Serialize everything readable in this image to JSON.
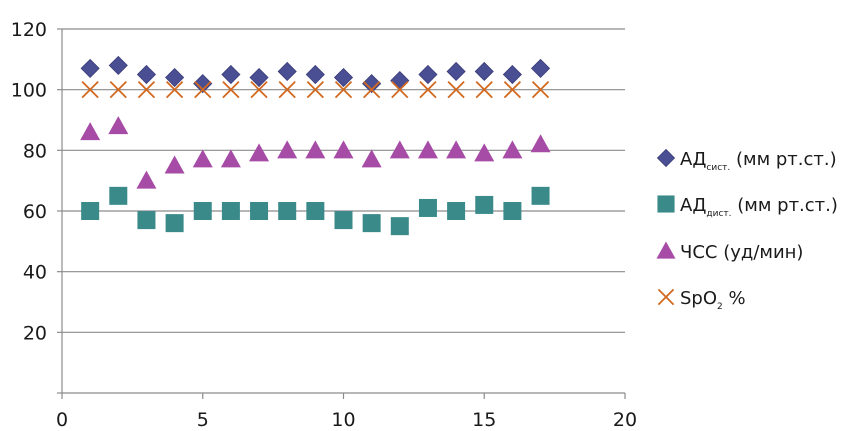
{
  "chart_data": {
    "type": "scatter",
    "title": "",
    "xlabel": "",
    "ylabel": "",
    "xlim": [
      0,
      20
    ],
    "ylim": [
      0,
      120
    ],
    "x_ticks": [
      0,
      5,
      10,
      15,
      20
    ],
    "y_ticks": [
      20,
      40,
      60,
      80,
      100,
      120
    ],
    "grid": "horizontal",
    "legend_position": "right",
    "x": [
      1,
      2,
      3,
      4,
      5,
      6,
      7,
      8,
      9,
      10,
      11,
      12,
      13,
      14,
      15,
      16,
      17
    ],
    "series": [
      {
        "name": "АД сист. (мм рт.ст.)",
        "legend_main": "АД",
        "legend_sub": "сист.",
        "legend_rest": " (мм рт.ст.)",
        "marker": "diamond",
        "color": "#4a4e93",
        "values": [
          107,
          108,
          105,
          104,
          102,
          105,
          104,
          106,
          105,
          104,
          102,
          103,
          105,
          106,
          106,
          105,
          107
        ]
      },
      {
        "name": "АД дист. (мм рт.ст.)",
        "legend_main": "АД",
        "legend_sub": "дист.",
        "legend_rest": " (мм рт.ст.)",
        "marker": "square",
        "color": "#3a8a8a",
        "values": [
          60,
          65,
          57,
          56,
          60,
          60,
          60,
          60,
          60,
          57,
          56,
          55,
          61,
          60,
          62,
          60,
          65
        ]
      },
      {
        "name": "ЧСС (уд/мин)",
        "legend_main": "ЧСС (уд/мин)",
        "legend_sub": "",
        "legend_rest": "",
        "marker": "triangle",
        "color": "#a64ca6",
        "values": [
          86,
          88,
          70,
          75,
          77,
          77,
          79,
          80,
          80,
          80,
          77,
          80,
          80,
          80,
          79,
          80,
          82
        ]
      },
      {
        "name": "SpO2 %",
        "legend_main": "SpO",
        "legend_sub": "2",
        "legend_rest": " %",
        "marker": "x",
        "color": "#d2691e",
        "values": [
          100,
          100,
          100,
          100,
          100,
          100,
          100,
          100,
          100,
          100,
          100,
          100,
          100,
          100,
          100,
          100,
          100
        ]
      }
    ]
  }
}
